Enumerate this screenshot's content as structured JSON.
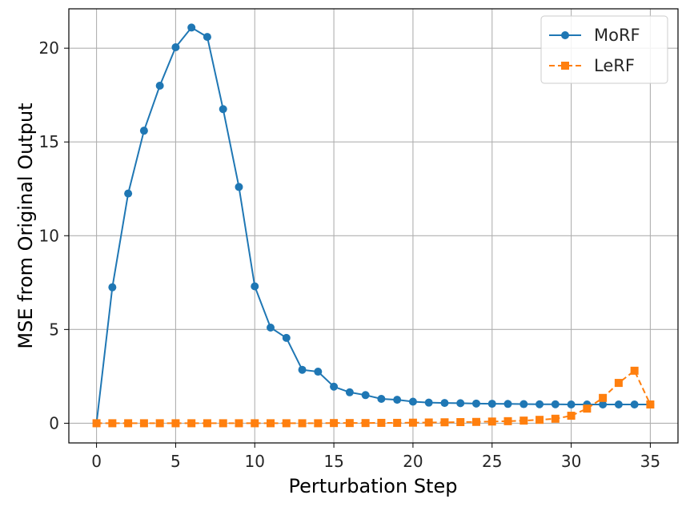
{
  "chart_data": {
    "type": "line",
    "xlabel": "Perturbation Step",
    "ylabel": "MSE from Original Output",
    "xlim": [
      -1.75,
      36.75
    ],
    "ylim": [
      -1.05,
      22.1
    ],
    "xticks": [
      "0",
      "5",
      "10",
      "15",
      "20",
      "25",
      "30",
      "35"
    ],
    "yticks": [
      "0",
      "5",
      "10",
      "15",
      "20"
    ],
    "grid": true,
    "legend_position": "top-right",
    "x": [
      0,
      1,
      2,
      3,
      4,
      5,
      6,
      7,
      8,
      9,
      10,
      11,
      12,
      13,
      14,
      15,
      16,
      17,
      18,
      19,
      20,
      21,
      22,
      23,
      24,
      25,
      26,
      27,
      28,
      29,
      30,
      31,
      32,
      33,
      34,
      35
    ],
    "series": [
      {
        "name": "MoRF",
        "color": "#1f77b4",
        "marker": "circle",
        "line_style": "solid",
        "values": [
          0.0,
          7.25,
          12.25,
          15.6,
          18.0,
          20.05,
          21.1,
          20.6,
          16.75,
          12.6,
          7.3,
          5.1,
          4.55,
          2.85,
          2.75,
          1.95,
          1.65,
          1.5,
          1.3,
          1.25,
          1.15,
          1.1,
          1.08,
          1.07,
          1.05,
          1.04,
          1.03,
          1.02,
          1.01,
          1.01,
          1.0,
          1.0,
          1.0,
          1.0,
          1.0,
          1.0
        ]
      },
      {
        "name": "LeRF",
        "color": "#ff7f0e",
        "marker": "square",
        "line_style": "dashed",
        "values": [
          0.0,
          0.0,
          0.0,
          0.0,
          0.0,
          0.0,
          0.0,
          0.0,
          0.0,
          0.0,
          0.0,
          0.0,
          0.0,
          0.0,
          0.0,
          0.01,
          0.01,
          0.01,
          0.02,
          0.02,
          0.03,
          0.04,
          0.05,
          0.06,
          0.07,
          0.09,
          0.11,
          0.14,
          0.18,
          0.24,
          0.4,
          0.78,
          1.35,
          2.15,
          2.8,
          1.0
        ]
      }
    ]
  }
}
